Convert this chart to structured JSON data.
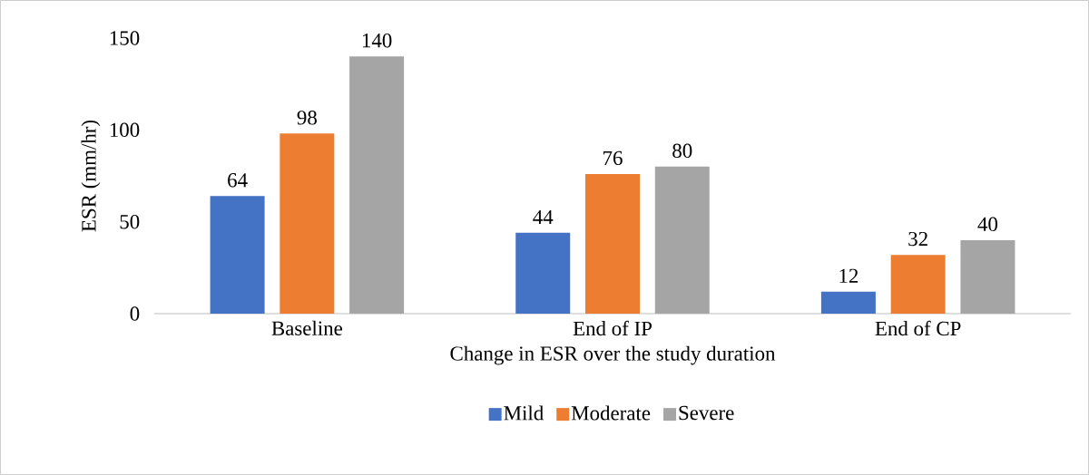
{
  "chart_data": {
    "type": "bar",
    "xlabel": "Change in ESR over the study duration",
    "ylabel": "ESR (mm/hr)",
    "categories": [
      "Baseline",
      "End of IP",
      "End of CP"
    ],
    "series": [
      {
        "name": "Mild",
        "color": "#4472c4",
        "values": [
          64,
          44,
          12
        ]
      },
      {
        "name": "Moderate",
        "color": "#ed7d31",
        "values": [
          98,
          76,
          32
        ]
      },
      {
        "name": "Severe",
        "color": "#a5a5a5",
        "values": [
          140,
          80,
          40
        ]
      }
    ],
    "ylim": [
      0,
      150
    ],
    "yticks": [
      0,
      50,
      100,
      150
    ],
    "data_labels": true,
    "grid": false,
    "legend": "bottom"
  }
}
